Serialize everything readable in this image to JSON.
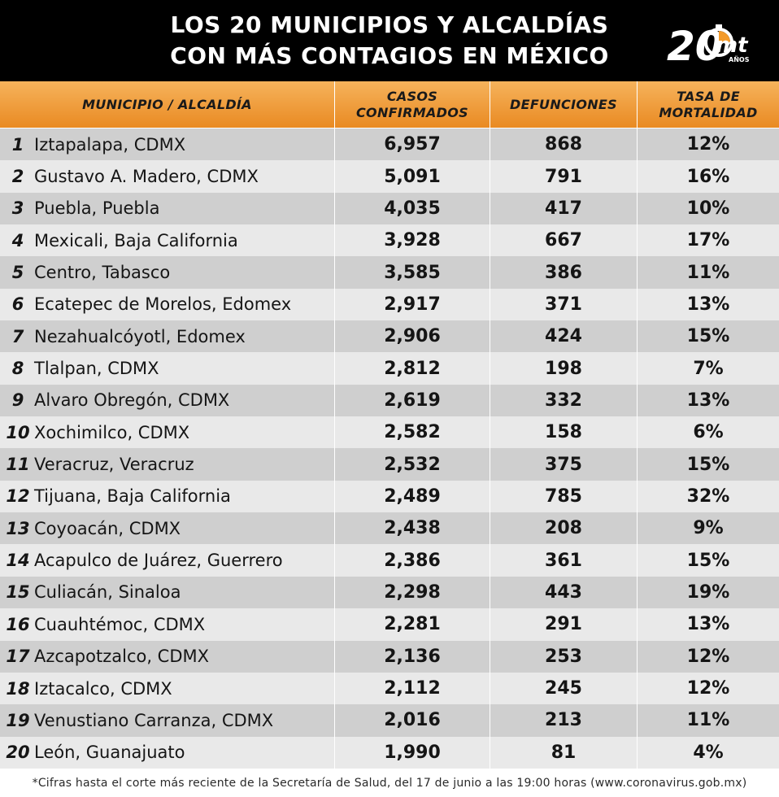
{
  "title_line1": "LOS 20 MUNICIPIOS Y ALCALDÍAS",
  "title_line2": "CON MÁS CONTAGIOS EN MÉXICO",
  "logo": {
    "number": "20",
    "brand": "mt",
    "suffix": "AÑOS"
  },
  "colors": {
    "header_bg": "#000000",
    "accent": "#e98a22",
    "row_dark": "#cfcfcf",
    "row_light": "#e9e9e9"
  },
  "chart_data": {
    "type": "table",
    "columns": [
      "MUNICIPIO / ALCALDÍA",
      "CASOS\nCONFIRMADOS",
      "DEFUNCIONES",
      "TASA DE\nMORTALIDAD"
    ],
    "rows": [
      {
        "rank": "1",
        "name": "Iztapalapa, CDMX",
        "cases": "6,957",
        "deaths": "868",
        "rate": "12%"
      },
      {
        "rank": "2",
        "name": "Gustavo A. Madero, CDMX",
        "cases": "5,091",
        "deaths": "791",
        "rate": "16%"
      },
      {
        "rank": "3",
        "name": "Puebla, Puebla",
        "cases": "4,035",
        "deaths": "417",
        "rate": "10%"
      },
      {
        "rank": "4",
        "name": "Mexicali, Baja California",
        "cases": "3,928",
        "deaths": "667",
        "rate": "17%"
      },
      {
        "rank": "5",
        "name": "Centro, Tabasco",
        "cases": "3,585",
        "deaths": "386",
        "rate": "11%"
      },
      {
        "rank": "6",
        "name": "Ecatepec de Morelos, Edomex",
        "cases": "2,917",
        "deaths": "371",
        "rate": "13%"
      },
      {
        "rank": "7",
        "name": "Nezahualcóyotl, Edomex",
        "cases": "2,906",
        "deaths": "424",
        "rate": "15%"
      },
      {
        "rank": "8",
        "name": "Tlalpan, CDMX",
        "cases": "2,812",
        "deaths": "198",
        "rate": "7%"
      },
      {
        "rank": "9",
        "name": "Alvaro Obregón, CDMX",
        "cases": "2,619",
        "deaths": "332",
        "rate": "13%"
      },
      {
        "rank": "10",
        "name": "Xochimilco, CDMX",
        "cases": "2,582",
        "deaths": "158",
        "rate": "6%"
      },
      {
        "rank": "11",
        "name": "Veracruz, Veracruz",
        "cases": "2,532",
        "deaths": "375",
        "rate": "15%"
      },
      {
        "rank": "12",
        "name": "Tijuana, Baja California",
        "cases": "2,489",
        "deaths": "785",
        "rate": "32%"
      },
      {
        "rank": "13",
        "name": "Coyoacán, CDMX",
        "cases": "2,438",
        "deaths": "208",
        "rate": "9%"
      },
      {
        "rank": "14",
        "name": "Acapulco de Juárez, Guerrero",
        "cases": "2,386",
        "deaths": "361",
        "rate": "15%"
      },
      {
        "rank": "15",
        "name": "Culiacán, Sinaloa",
        "cases": "2,298",
        "deaths": "443",
        "rate": "19%"
      },
      {
        "rank": "16",
        "name": "Cuauhtémoc, CDMX",
        "cases": "2,281",
        "deaths": "291",
        "rate": "13%"
      },
      {
        "rank": "17",
        "name": "Azcapotzalco, CDMX",
        "cases": "2,136",
        "deaths": "253",
        "rate": "12%"
      },
      {
        "rank": "18",
        "name": "Iztacalco, CDMX",
        "cases": "2,112",
        "deaths": "245",
        "rate": "12%"
      },
      {
        "rank": "19",
        "name": "Venustiano Carranza, CDMX",
        "cases": "2,016",
        "deaths": "213",
        "rate": "11%"
      },
      {
        "rank": "20",
        "name": "León, Guanajuato",
        "cases": "1,990",
        "deaths": "81",
        "rate": "4%"
      }
    ]
  },
  "footnote": "*Cifras hasta el corte más reciente de la Secretaría de Salud, del 17 de junio a las 19:00 horas (www.coronavirus.gob.mx)"
}
